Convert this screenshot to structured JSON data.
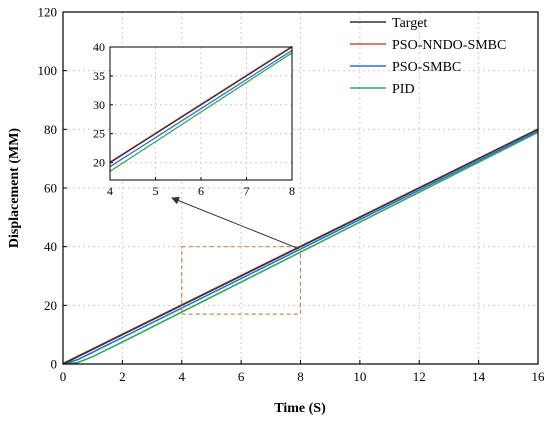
{
  "chart_data": {
    "type": "line",
    "title": "",
    "xlabel": "Time (S)",
    "ylabel": "Displacement (MM)",
    "xlim": [
      0,
      16
    ],
    "ylim": [
      0,
      120
    ],
    "xticks": [
      "0",
      "2",
      "4",
      "6",
      "8",
      "10",
      "12",
      "14",
      "16"
    ],
    "yticks": [
      "0",
      "20",
      "40",
      "60",
      "80",
      "100",
      "120"
    ],
    "grid": true,
    "legend_position": "top-right",
    "series": [
      {
        "name": "Target",
        "color": "#333333",
        "x": [
          0,
          16
        ],
        "y": [
          0,
          80
        ]
      },
      {
        "name": "PSO-NNDO-SMBC",
        "color": "#e0474c",
        "x": [
          0,
          16
        ],
        "y": [
          0.2,
          80.1
        ]
      },
      {
        "name": "PSO-SMBC",
        "color": "#2f6fd6",
        "x": [
          0,
          0.5,
          1,
          16
        ],
        "y": [
          0,
          1.5,
          4,
          79.4
        ]
      },
      {
        "name": "PID",
        "color": "#35a85a",
        "x": [
          0,
          0.5,
          1,
          2,
          16
        ],
        "y": [
          0,
          0.5,
          2.5,
          7.5,
          79.0
        ]
      }
    ],
    "zoom_box": {
      "xlim": [
        4,
        8
      ],
      "ylim": [
        17,
        40
      ],
      "color": "#c98a5a"
    },
    "inset": {
      "xlim": [
        4,
        8
      ],
      "ylim": [
        17,
        40
      ],
      "xticks": [
        "4",
        "5",
        "6",
        "7",
        "8"
      ],
      "yticks": [
        "20",
        "25",
        "30",
        "35",
        "40"
      ],
      "series": [
        {
          "name": "Target",
          "color": "#333333",
          "x": [
            4,
            8
          ],
          "y": [
            20,
            40
          ]
        },
        {
          "name": "PSO-NNDO-SMBC",
          "color": "#e0474c",
          "x": [
            4,
            8
          ],
          "y": [
            20.1,
            40.1
          ]
        },
        {
          "name": "PSO-SMBC",
          "color": "#2f6fd6",
          "x": [
            4,
            8
          ],
          "y": [
            19.3,
            39.4
          ]
        },
        {
          "name": "PID",
          "color": "#35a85a",
          "x": [
            4,
            8
          ],
          "y": [
            18.5,
            39.0
          ]
        }
      ]
    }
  }
}
